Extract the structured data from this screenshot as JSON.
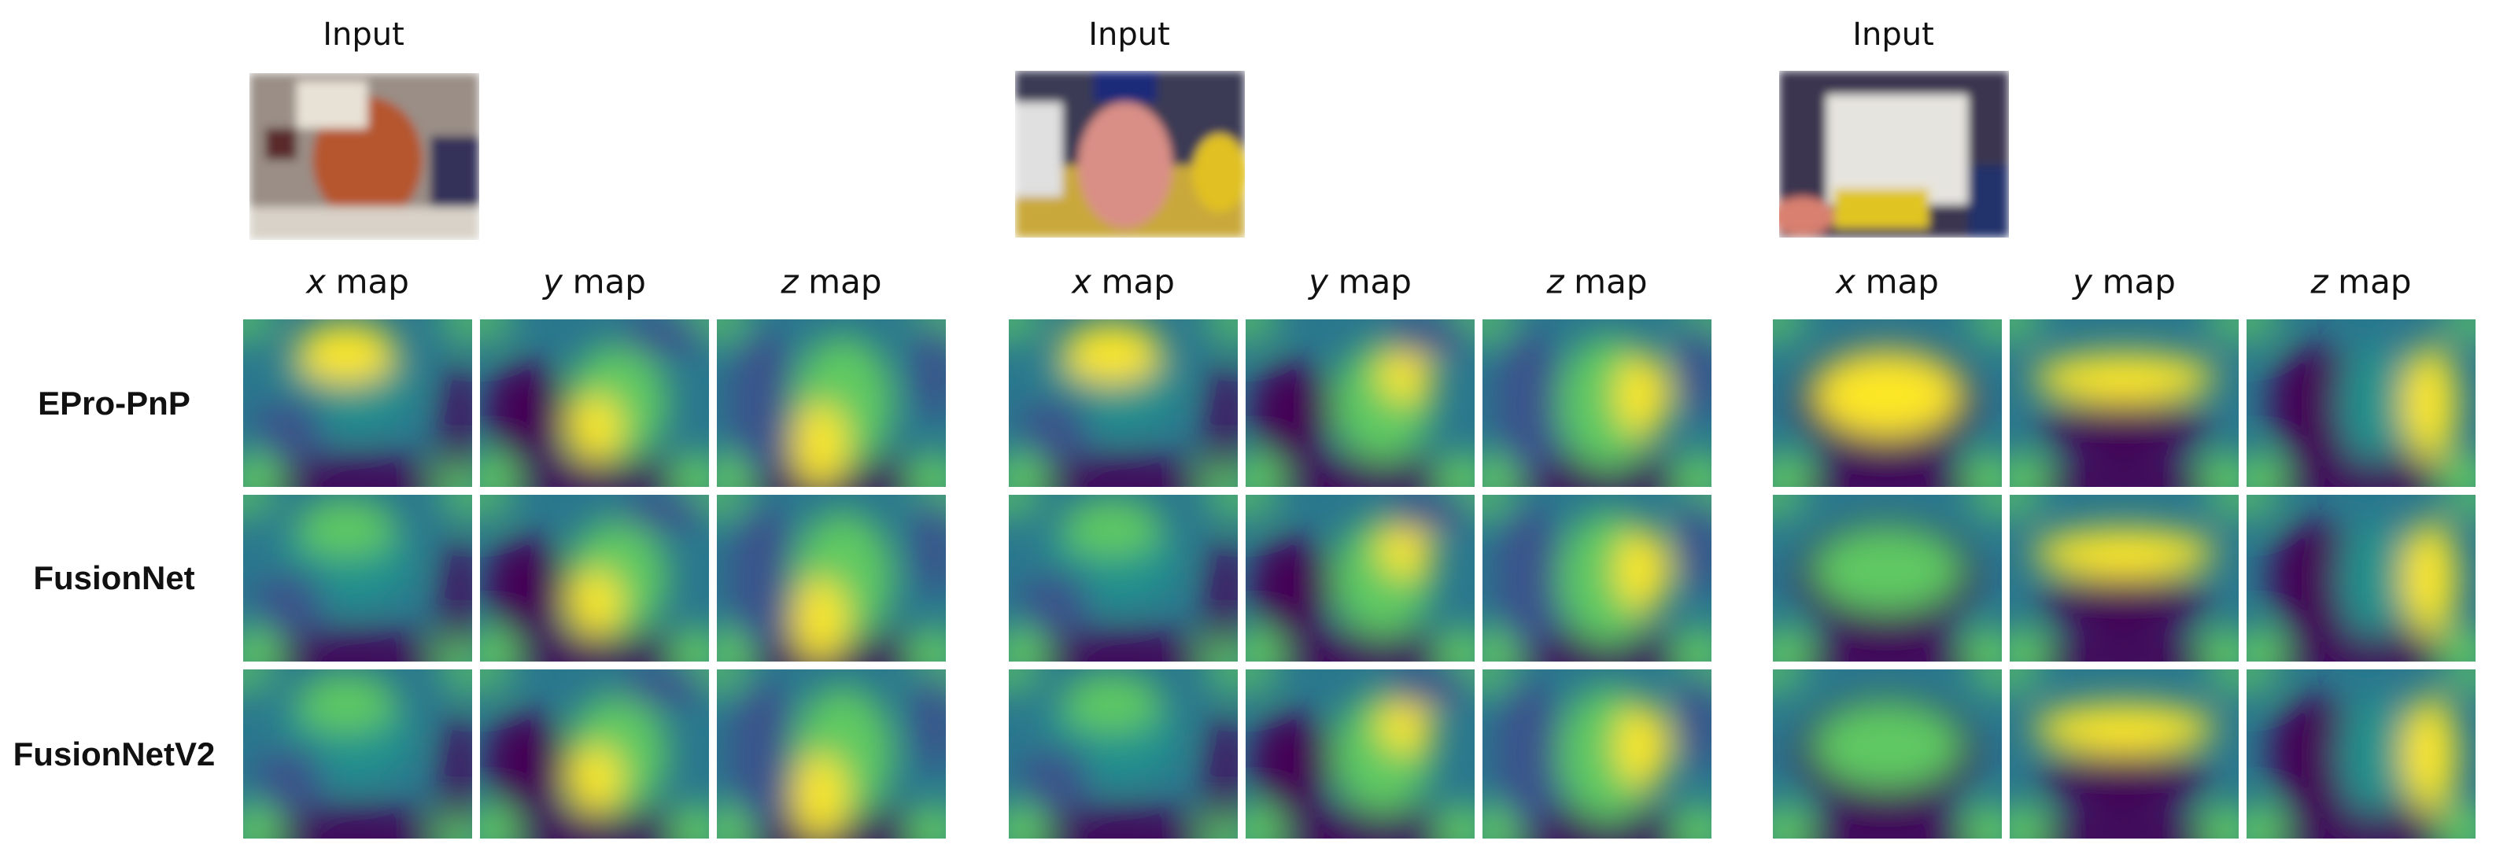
{
  "groups": [
    {
      "input": "Input",
      "maps": [
        {
          "var": "x",
          "word": "map"
        },
        {
          "var": "y",
          "word": "map"
        },
        {
          "var": "z",
          "word": "map"
        }
      ]
    },
    {
      "input": "Input",
      "maps": [
        {
          "var": "x",
          "word": "map"
        },
        {
          "var": "y",
          "word": "map"
        },
        {
          "var": "z",
          "word": "map"
        }
      ]
    },
    {
      "input": "Input",
      "maps": [
        {
          "var": "x",
          "word": "map"
        },
        {
          "var": "y",
          "word": "map"
        },
        {
          "var": "z",
          "word": "map"
        }
      ]
    }
  ],
  "rows": [
    "EPro-PnP",
    "FusionNet",
    "FusionNetV2"
  ]
}
